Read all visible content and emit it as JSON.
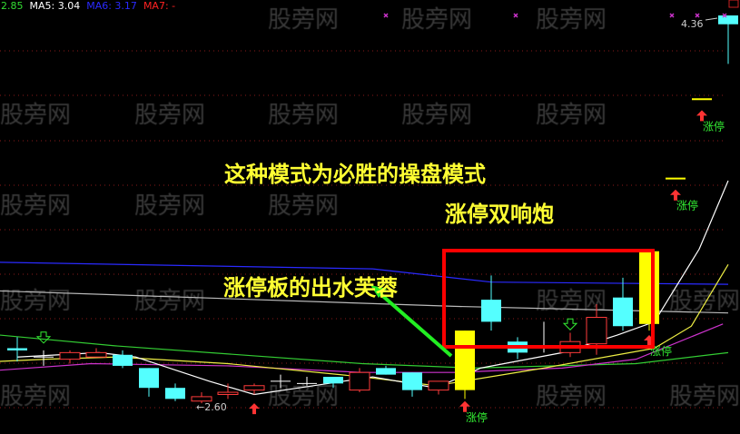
{
  "legend": {
    "first": "2.85",
    "ma5": "MA5: 3.04",
    "ma6": "MA6: 3.17",
    "ma7": "MA7: -"
  },
  "watermark": "股旁网",
  "annotations": {
    "main": "这种模式为必胜的操盘模式",
    "double": "涨停双响炮",
    "lotus": "涨停板的出水芙蓉"
  },
  "colors": {
    "up": "#ff3b3b",
    "down": "#54ffff",
    "limit_up": "#ffff00",
    "highlight_box": "#ff0000",
    "arrow": "#22ee22"
  },
  "chart_data": {
    "type": "candlestick",
    "ylim": [
      2.55,
      4.4
    ],
    "grid": "dotted-red-horizontal",
    "candles": [
      {
        "o": 2.85,
        "h": 2.9,
        "l": 2.79,
        "c": 2.84
      },
      {
        "o": 2.81,
        "h": 2.84,
        "l": 2.77,
        "c": 2.81
      },
      {
        "o": 2.8,
        "h": 2.84,
        "l": 2.78,
        "c": 2.83
      },
      {
        "o": 2.81,
        "h": 2.85,
        "l": 2.81,
        "c": 2.83
      },
      {
        "o": 2.82,
        "h": 2.84,
        "l": 2.76,
        "c": 2.77
      },
      {
        "o": 2.76,
        "h": 2.76,
        "l": 2.63,
        "c": 2.67
      },
      {
        "o": 2.67,
        "h": 2.69,
        "l": 2.61,
        "c": 2.62
      },
      {
        "o": 2.61,
        "h": 2.65,
        "l": 2.6,
        "c": 2.63
      },
      {
        "o": 2.64,
        "h": 2.69,
        "l": 2.62,
        "c": 2.65
      },
      {
        "o": 2.66,
        "h": 2.69,
        "l": 2.64,
        "c": 2.68
      },
      {
        "o": 2.7,
        "h": 2.73,
        "l": 2.67,
        "c": 2.7
      },
      {
        "o": 2.69,
        "h": 2.72,
        "l": 2.68,
        "c": 2.69
      },
      {
        "o": 2.72,
        "h": 2.72,
        "l": 2.67,
        "c": 2.69
      },
      {
        "o": 2.66,
        "h": 2.76,
        "l": 2.65,
        "c": 2.74
      },
      {
        "o": 2.76,
        "h": 2.77,
        "l": 2.73,
        "c": 2.73
      },
      {
        "o": 2.74,
        "h": 2.74,
        "l": 2.63,
        "c": 2.66
      },
      {
        "o": 2.66,
        "h": 2.7,
        "l": 2.64,
        "c": 2.7
      },
      {
        "o": 2.66,
        "h": 2.93,
        "l": 2.62,
        "c": 2.93,
        "limit": true
      },
      {
        "o": 3.07,
        "h": 3.18,
        "l": 2.93,
        "c": 2.97
      },
      {
        "o": 2.88,
        "h": 2.9,
        "l": 2.8,
        "c": 2.83
      },
      {
        "o": 2.86,
        "h": 2.97,
        "l": 2.83,
        "c": 2.86
      },
      {
        "o": 2.83,
        "h": 2.92,
        "l": 2.81,
        "c": 2.88
      },
      {
        "o": 2.87,
        "h": 3.05,
        "l": 2.82,
        "c": 2.99
      },
      {
        "o": 3.08,
        "h": 3.17,
        "l": 2.93,
        "c": 2.95
      },
      {
        "o": 2.96,
        "h": 3.29,
        "l": 2.93,
        "c": 3.29,
        "limit": true
      },
      {
        "o": 3.62,
        "h": 3.62,
        "l": 3.62,
        "c": 3.62,
        "limit": true
      },
      {
        "o": 3.98,
        "h": 3.98,
        "l": 3.98,
        "c": 3.98,
        "limit": true
      },
      {
        "o": 4.36,
        "h": 4.36,
        "l": 4.14,
        "c": 4.32
      }
    ],
    "lines": [
      {
        "color": "#2a2aff",
        "points": [
          [
            -0.7,
            3.24
          ],
          [
            13.5,
            3.21
          ],
          [
            18,
            3.15
          ],
          [
            27,
            3.14
          ]
        ]
      },
      {
        "color": "#bbbbbb",
        "points": [
          [
            -0.7,
            3.11
          ],
          [
            16.6,
            3.04
          ],
          [
            27,
            3.01
          ]
        ]
      },
      {
        "color": "#33cc33",
        "points": [
          [
            -0.7,
            2.91
          ],
          [
            3.8,
            2.86
          ],
          [
            13.1,
            2.78
          ],
          [
            17.3,
            2.76
          ],
          [
            23.5,
            2.78
          ],
          [
            27,
            2.83
          ]
        ]
      },
      {
        "color": "#cc33cc",
        "points": [
          [
            -0.7,
            2.75
          ],
          [
            2.8,
            2.78
          ],
          [
            8,
            2.77
          ],
          [
            13.1,
            2.74
          ],
          [
            16.6,
            2.74
          ],
          [
            20.7,
            2.76
          ],
          [
            23.5,
            2.8
          ],
          [
            26.8,
            2.96
          ]
        ]
      },
      {
        "color": "#eeee44",
        "points": [
          [
            -0.7,
            2.79
          ],
          [
            1.1,
            2.8
          ],
          [
            3.8,
            2.81
          ],
          [
            8,
            2.78
          ],
          [
            13.1,
            2.72
          ],
          [
            15.9,
            2.68
          ],
          [
            20,
            2.76
          ],
          [
            24.2,
            2.85
          ],
          [
            25.6,
            2.95
          ],
          [
            27,
            3.23
          ]
        ]
      },
      {
        "color": "#ffffff",
        "points": [
          [
            0,
            2.81
          ],
          [
            3.1,
            2.83
          ],
          [
            4.5,
            2.81
          ],
          [
            7.3,
            2.7
          ],
          [
            9,
            2.64
          ],
          [
            10.7,
            2.67
          ],
          [
            13.5,
            2.72
          ],
          [
            15.9,
            2.67
          ],
          [
            17.6,
            2.76
          ],
          [
            20.7,
            2.83
          ],
          [
            22.8,
            2.91
          ],
          [
            24.2,
            2.97
          ],
          [
            25.9,
            3.3
          ],
          [
            27,
            3.61
          ]
        ]
      }
    ],
    "markers": [
      {
        "index": 1,
        "type": "sell-arrow",
        "price": 2.89
      },
      {
        "index": 21,
        "type": "sell-arrow",
        "price": 2.95
      },
      {
        "index": 9,
        "type": "limit-up-arrow",
        "price": 2.6
      },
      {
        "index": 17,
        "type": "limit-up-arrow",
        "price": 2.61,
        "label": "涨停"
      },
      {
        "index": 24,
        "type": "limit-up-arrow",
        "price": 2.91,
        "label": "涨停"
      },
      {
        "index": 25,
        "type": "limit-up-arrow",
        "price": 3.57,
        "label": "涨停"
      },
      {
        "index": 26,
        "type": "limit-up-arrow",
        "price": 3.93,
        "label": "涨停"
      }
    ],
    "price_labels": {
      "low": "←2.60",
      "high": "4.36"
    }
  }
}
